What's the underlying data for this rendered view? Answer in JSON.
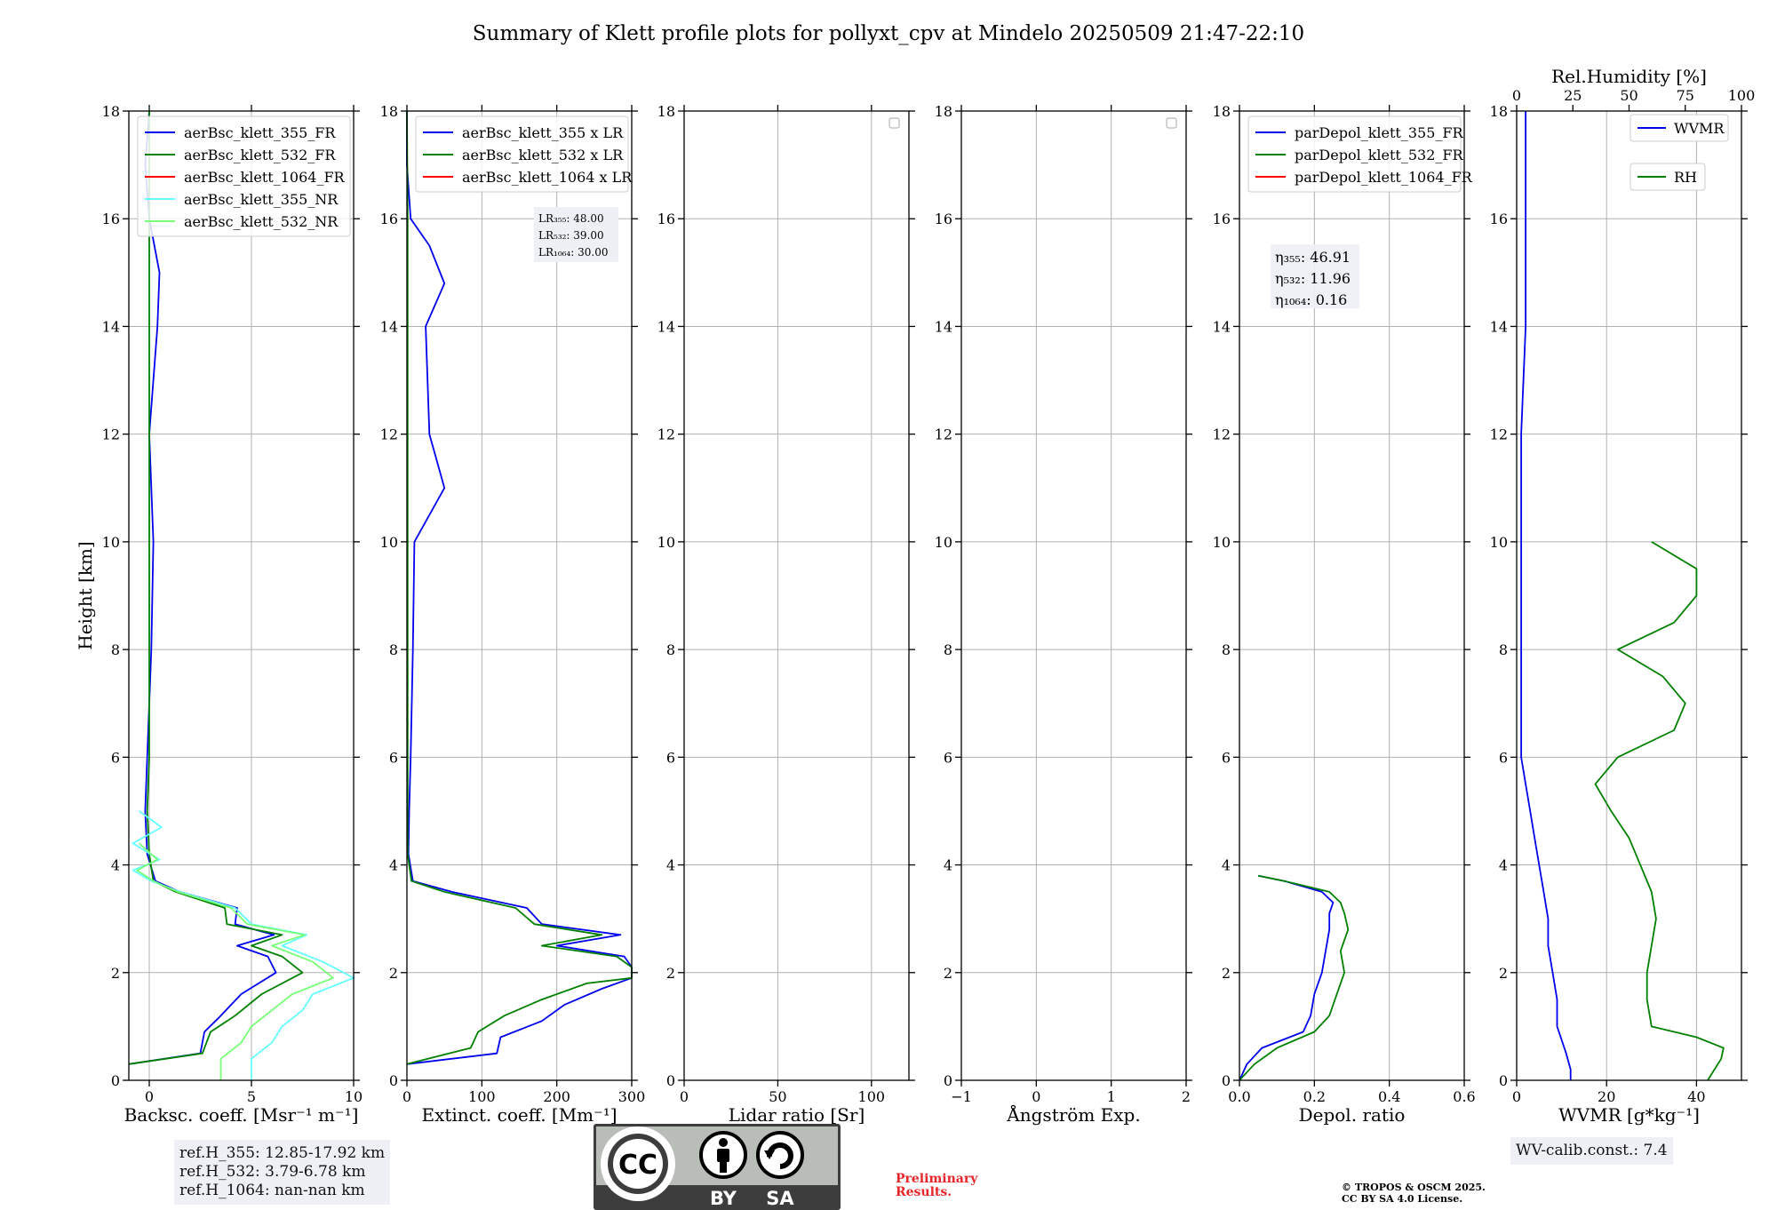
{
  "figure_title": "Summary of Klett profile plots for pollyxt_cpv at Mindelo 20250509 21:47-22:10",
  "colors": {
    "c355": "#0000ee",
    "c532": "#008000",
    "c1064": "#ff0000",
    "c355nr": "#66ffff",
    "c532nr": "#77ff77"
  },
  "ref_heights": [
    "ref.H_355: 12.85-17.92 km",
    "ref.H_532: 3.79-6.78 km",
    "ref.H_1064: nan-nan km"
  ],
  "wv_calib": "WV-calib.const.: 7.4",
  "preliminary": [
    "Preliminary",
    "Results."
  ],
  "copyright": [
    "© TROPOS & OSCM 2025.",
    "CC BY SA 4.0 License."
  ],
  "license_badge": {
    "cc": "CC",
    "by": "BY",
    "sa": "SA"
  },
  "chart_data": [
    {
      "type": "line",
      "xlabel": "Backsc. coeff. [Msr⁻¹ m⁻¹]",
      "ylabel": "Height [km]",
      "xlim": [
        -1,
        10
      ],
      "ylim": [
        0,
        18
      ],
      "xticks": [
        0,
        5,
        10
      ],
      "yticks": [
        0,
        2,
        4,
        6,
        8,
        10,
        12,
        14,
        16,
        18
      ],
      "grid": true,
      "legend_position": "top-right",
      "series": [
        {
          "name": "aerBsc_klett_355_FR",
          "color": "#0000ee",
          "y": [
            0.3,
            0.5,
            0.9,
            1.2,
            1.6,
            2.0,
            2.3,
            2.5,
            2.7,
            2.9,
            3.2,
            3.5,
            3.7,
            4.2,
            5.0,
            6.0,
            8.0,
            10.0,
            12.0,
            14.0,
            15.0,
            16.0,
            17.0,
            18.0
          ],
          "x": [
            -1.0,
            2.5,
            2.7,
            3.5,
            4.5,
            6.2,
            5.8,
            4.3,
            6.1,
            4.2,
            4.3,
            1.5,
            0.3,
            -0.1,
            -0.2,
            -0.1,
            0.1,
            0.2,
            0.0,
            0.4,
            0.5,
            0.0,
            -0.2,
            0.0
          ]
        },
        {
          "name": "aerBsc_klett_532_FR",
          "color": "#008000",
          "y": [
            0.3,
            0.5,
            0.9,
            1.2,
            1.6,
            2.0,
            2.3,
            2.5,
            2.7,
            2.9,
            3.2,
            3.5,
            3.7,
            4.2,
            5.0,
            6.0,
            8.0,
            10.0,
            12.0,
            14.0,
            16.0,
            18.0
          ],
          "x": [
            -1.0,
            2.6,
            3.0,
            4.2,
            5.5,
            7.5,
            6.5,
            5.0,
            6.5,
            3.8,
            3.7,
            1.3,
            0.2,
            0.0,
            -0.1,
            0.0,
            0.0,
            0.0,
            0.0,
            0.0,
            0.0,
            0.0
          ]
        },
        {
          "name": "aerBsc_klett_1064_FR",
          "color": "#ff0000",
          "y": [],
          "x": []
        },
        {
          "name": "aerBsc_klett_355_NR",
          "color": "#66ffff",
          "y": [
            0.0,
            0.4,
            0.7,
            1.0,
            1.3,
            1.6,
            1.9,
            2.2,
            2.5,
            2.7,
            2.9,
            3.2,
            3.5,
            3.7,
            3.9,
            4.1,
            4.4,
            4.7,
            5.0
          ],
          "x": [
            5.0,
            5.0,
            6.0,
            6.5,
            7.5,
            8.0,
            10.0,
            8.5,
            6.5,
            7.7,
            5.0,
            4.2,
            1.5,
            0.1,
            -0.8,
            0.5,
            -0.8,
            0.6,
            -0.5
          ]
        },
        {
          "name": "aerBsc_klett_532_NR",
          "color": "#77ff77",
          "y": [
            0.0,
            0.4,
            0.7,
            1.0,
            1.3,
            1.6,
            1.9,
            2.2,
            2.5,
            2.7,
            2.9,
            3.2,
            3.5,
            3.7,
            3.9,
            4.1,
            4.4
          ],
          "x": [
            3.5,
            3.5,
            4.5,
            5.0,
            6.0,
            7.0,
            9.0,
            8.0,
            6.0,
            7.6,
            4.8,
            4.0,
            1.4,
            0.2,
            -0.6,
            0.4,
            -0.5
          ]
        }
      ]
    },
    {
      "type": "line",
      "xlabel": "Extinct. coeff. [Mm⁻¹]",
      "xlim": [
        0,
        300
      ],
      "ylim": [
        0,
        18
      ],
      "xticks": [
        0,
        100,
        200,
        300
      ],
      "yticks": [
        0,
        2,
        4,
        6,
        8,
        10,
        12,
        14,
        16,
        18
      ],
      "grid": true,
      "legend_position": "top-right",
      "lr_box": [
        "LR₃₅₅: 48.00",
        "LR₅₃₂: 39.00",
        "LR₁₀₆₄: 30.00"
      ],
      "series": [
        {
          "name": "aerBsc_klett_355 x LR",
          "color": "#0000ee",
          "y": [
            0.3,
            0.5,
            0.8,
            1.1,
            1.4,
            1.7,
            1.9,
            2.1,
            2.3,
            2.5,
            2.7,
            2.9,
            3.2,
            3.5,
            3.7,
            4.2,
            5.0,
            6.0,
            8.0,
            10.0,
            11.0,
            12.0,
            14.0,
            14.8,
            15.5,
            16.0,
            17.0,
            18.0
          ],
          "x": [
            0,
            120,
            125,
            180,
            210,
            260,
            300,
            300,
            290,
            200,
            285,
            180,
            160,
            60,
            8,
            2,
            3,
            5,
            8,
            10,
            50,
            30,
            25,
            50,
            30,
            5,
            0,
            0
          ]
        },
        {
          "name": "aerBsc_klett_532 x LR",
          "color": "#008000",
          "y": [
            0.3,
            0.6,
            0.9,
            1.2,
            1.5,
            1.8,
            1.9,
            2.1,
            2.3,
            2.5,
            2.7,
            2.9,
            3.2,
            3.5,
            3.7,
            4.2,
            5.0,
            8.0,
            12.0,
            16.0,
            18.0
          ],
          "x": [
            0,
            85,
            95,
            130,
            180,
            240,
            300,
            300,
            280,
            180,
            260,
            170,
            145,
            50,
            6,
            1,
            1,
            1,
            1,
            1,
            0
          ]
        },
        {
          "name": "aerBsc_klett_1064 x LR",
          "color": "#ff0000",
          "y": [],
          "x": []
        }
      ]
    },
    {
      "type": "line",
      "xlabel": "Lidar ratio [Sr]",
      "xlim": [
        0,
        120
      ],
      "ylim": [
        0,
        18
      ],
      "xticks": [
        0,
        50,
        100
      ],
      "yticks": [
        0,
        2,
        4,
        6,
        8,
        10,
        12,
        14,
        16,
        18
      ],
      "grid": true,
      "series": []
    },
    {
      "type": "line",
      "xlabel": "Ångström Exp.",
      "xlim": [
        -1,
        2
      ],
      "ylim": [
        0,
        18
      ],
      "xticks": [
        -1,
        0,
        1,
        2
      ],
      "yticks": [
        0,
        2,
        4,
        6,
        8,
        10,
        12,
        14,
        16,
        18
      ],
      "grid": true,
      "series": []
    },
    {
      "type": "line",
      "xlabel": "Depol. ratio",
      "xlim": [
        0,
        0.6
      ],
      "ylim": [
        0,
        18
      ],
      "xticks": [
        0.0,
        0.2,
        0.4,
        0.6
      ],
      "yticks": [
        0,
        2,
        4,
        6,
        8,
        10,
        12,
        14,
        16,
        18
      ],
      "grid": true,
      "legend_position": "top-right",
      "eta_box": [
        "η₃₅₅: 46.91",
        "η₅₃₂: 11.96",
        "η₁₀₆₄: 0.16"
      ],
      "series": [
        {
          "name": "parDepol_klett_355_FR",
          "color": "#0000ee",
          "y": [
            0.0,
            0.3,
            0.6,
            0.9,
            1.2,
            1.6,
            2.0,
            2.4,
            2.8,
            3.1,
            3.3,
            3.5,
            3.7,
            3.8
          ],
          "x": [
            0.0,
            0.02,
            0.06,
            0.17,
            0.19,
            0.2,
            0.22,
            0.23,
            0.24,
            0.24,
            0.25,
            0.22,
            0.12,
            0.05
          ]
        },
        {
          "name": "parDepol_klett_532_FR",
          "color": "#008000",
          "y": [
            0.0,
            0.3,
            0.6,
            0.9,
            1.2,
            1.6,
            2.0,
            2.4,
            2.8,
            3.1,
            3.3,
            3.5,
            3.7,
            3.8
          ],
          "x": [
            0.0,
            0.04,
            0.1,
            0.2,
            0.24,
            0.26,
            0.28,
            0.27,
            0.29,
            0.28,
            0.27,
            0.24,
            0.12,
            0.05
          ]
        },
        {
          "name": "parDepol_klett_1064_FR",
          "color": "#ff0000",
          "y": [],
          "x": []
        }
      ]
    },
    {
      "type": "line",
      "xlabel": "WVMR [g*kg⁻¹]",
      "x2label": "Rel.Humidity [%]",
      "xlim": [
        0,
        50
      ],
      "x2lim": [
        0,
        100
      ],
      "ylim": [
        0,
        18
      ],
      "xticks": [
        0,
        20,
        40
      ],
      "x2ticks": [
        0,
        25,
        50,
        75,
        100
      ],
      "yticks": [
        0,
        2,
        4,
        6,
        8,
        10,
        12,
        14,
        16,
        18
      ],
      "grid": true,
      "legend_position": "top-right",
      "series": [
        {
          "name": "WVMR",
          "axis": "bottom",
          "color": "#0000ee",
          "y": [
            0.0,
            0.2,
            0.5,
            1.0,
            1.5,
            2.0,
            2.5,
            3.0,
            3.5,
            4.0,
            4.5,
            5.0,
            5.5,
            6.0,
            7.0,
            8.0,
            9.0,
            10.0,
            12.0,
            14.0,
            16.0,
            18.0
          ],
          "x": [
            12,
            12,
            11,
            9,
            9,
            8,
            7,
            7,
            6,
            5,
            4,
            3,
            2,
            1,
            1,
            1,
            1,
            1,
            1,
            2,
            2,
            2
          ]
        },
        {
          "name": "RH",
          "axis": "top",
          "color": "#008000",
          "y": [
            0.0,
            0.2,
            0.4,
            0.6,
            0.8,
            1.0,
            1.5,
            2.0,
            2.5,
            3.0,
            3.5,
            4.0,
            4.5,
            5.0,
            5.5,
            6.0,
            6.5,
            7.0,
            7.5,
            8.0,
            8.5,
            9.0,
            9.5,
            10.0
          ],
          "x": [
            85,
            88,
            91,
            92,
            80,
            60,
            58,
            58,
            60,
            62,
            60,
            55,
            50,
            42,
            35,
            45,
            70,
            75,
            65,
            45,
            70,
            80,
            80,
            60
          ]
        }
      ]
    }
  ]
}
